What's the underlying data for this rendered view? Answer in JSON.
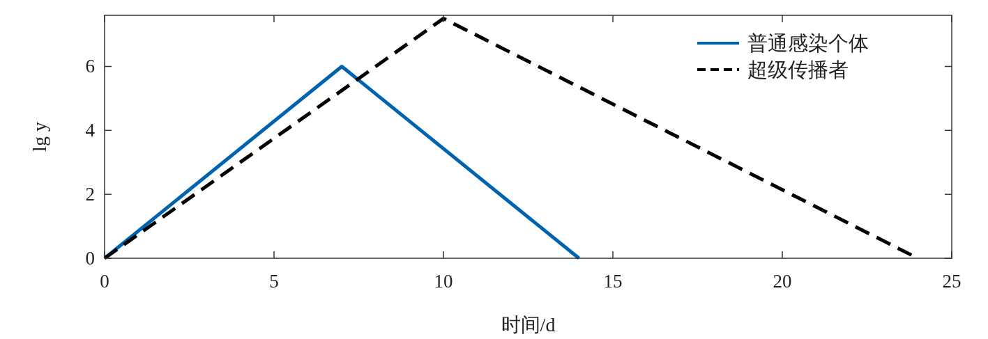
{
  "chart_data": {
    "type": "line",
    "xlabel": "时间/d",
    "ylabel": "lg y",
    "xlim": [
      0,
      25
    ],
    "ylim": [
      0,
      7.6
    ],
    "xticks": [
      0,
      5,
      10,
      15,
      20,
      25
    ],
    "yticks": [
      0,
      2,
      4,
      6
    ],
    "grid": false,
    "legend": "top right",
    "series": [
      {
        "name": "普通感染个体",
        "color": "#0063af",
        "line_style": "solid",
        "x": [
          0,
          7,
          14
        ],
        "values": [
          0,
          6,
          0
        ]
      },
      {
        "name": "超级传播者",
        "color": "#000000",
        "line_style": "dashed",
        "x": [
          0,
          10,
          24
        ],
        "values": [
          0,
          7.5,
          0
        ]
      }
    ]
  }
}
